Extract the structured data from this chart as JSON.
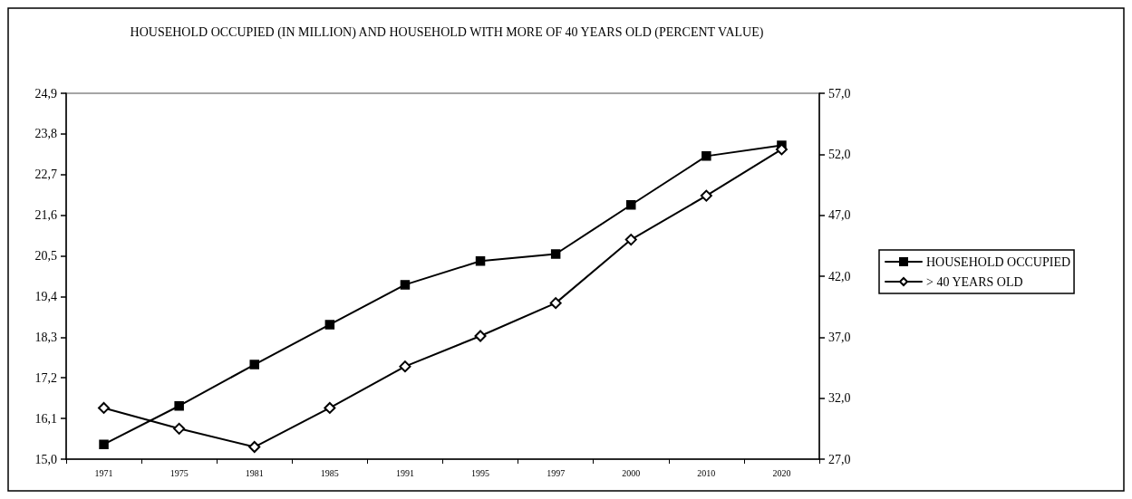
{
  "chart_data": {
    "type": "line",
    "title": "HOUSEHOLD OCCUPIED (IN MILLION) AND HOUSEHOLD WITH MORE OF 40 YEARS OLD (PERCENT VALUE)",
    "categories": [
      "1971",
      "1975",
      "1981",
      "1985",
      "1991",
      "1995",
      "1997",
      "2000",
      "2010",
      "2020"
    ],
    "series": [
      {
        "name": "HOUSEHOLD OCCUPIED",
        "color": "#000000",
        "marker": "square",
        "values": [
          15.4,
          16.44,
          17.56,
          18.64,
          19.72,
          20.36,
          20.55,
          21.88,
          23.2,
          23.49
        ]
      },
      {
        "name": "> 40 YEARS OLD",
        "color": "#000000",
        "marker": "diamond",
        "axis": "y2",
        "values": [
          31.2,
          29.5,
          28.0,
          31.2,
          34.6,
          37.1,
          39.8,
          45.0,
          48.6,
          52.4
        ]
      }
    ],
    "ylim": [
      15.0,
      24.9
    ],
    "yticks": [
      {
        "value": 15.0,
        "label": "15,0"
      },
      {
        "value": 16.1,
        "label": "16,1"
      },
      {
        "value": 17.2,
        "label": "17,2"
      },
      {
        "value": 18.3,
        "label": "18,3"
      },
      {
        "value": 19.4,
        "label": "19,4"
      },
      {
        "value": 20.5,
        "label": "20,5"
      },
      {
        "value": 21.6,
        "label": "21,6"
      },
      {
        "value": 22.7,
        "label": "22,7"
      },
      {
        "value": 23.8,
        "label": "23,8"
      },
      {
        "value": 24.9,
        "label": "24,9"
      }
    ],
    "y2lim": [
      27.0,
      57.0
    ],
    "y2ticks": [
      {
        "value": 27.0,
        "label": "27,0"
      },
      {
        "value": 32.0,
        "label": "32,0"
      },
      {
        "value": 37.0,
        "label": "37,0"
      },
      {
        "value": 42.0,
        "label": "42,0"
      },
      {
        "value": 47.0,
        "label": "47,0"
      },
      {
        "value": 52.0,
        "label": "52,0"
      },
      {
        "value": 57.0,
        "label": "57,0"
      }
    ],
    "legend": "right",
    "grid": false
  }
}
